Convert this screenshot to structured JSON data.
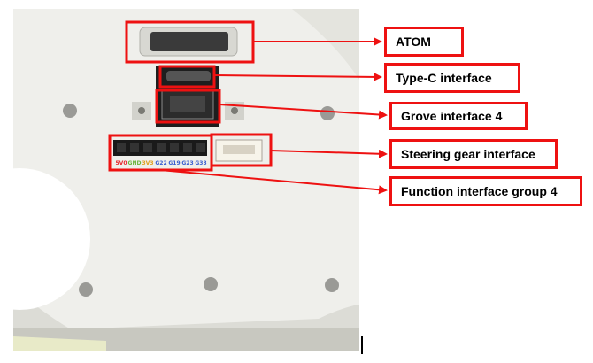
{
  "photo": {
    "pin_header_labels": [
      "5V0",
      "GND",
      "3V3",
      "G22",
      "G19",
      "G23",
      "G33"
    ],
    "pin_label_colors": [
      "#e8242a",
      "#6bb440",
      "#e0a020",
      "#3a5fd0",
      "#3a5fd0",
      "#3a5fd0",
      "#3a5fd0"
    ]
  },
  "callouts": [
    {
      "id": "atom",
      "label": "ATOM"
    },
    {
      "id": "type-c",
      "label": "Type-C interface"
    },
    {
      "id": "grove",
      "label": "Grove interface 4"
    },
    {
      "id": "steering",
      "label": "Steering gear interface"
    },
    {
      "id": "function",
      "label": "Function interface group 4"
    }
  ],
  "colors": {
    "highlight": "#ee1111",
    "device_body": "#eeeeea",
    "background": "#ffffff"
  }
}
